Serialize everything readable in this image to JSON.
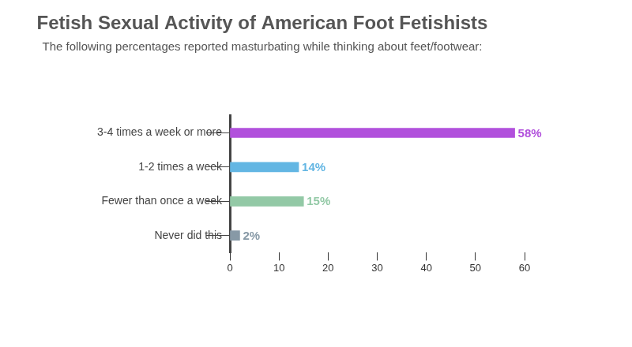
{
  "chart_data": {
    "type": "bar",
    "orientation": "horizontal",
    "title": "Fetish Sexual Activity of American Foot Fetishists",
    "subtitle": "The following percentages reported masturbating while thinking about feet/footwear:",
    "categories": [
      "3-4 times a week or more",
      "1-2 times a week",
      "Fewer than once a week",
      "Never did this"
    ],
    "values": [
      58,
      14,
      15,
      2
    ],
    "value_labels": [
      "58%",
      "14%",
      "15%",
      "2%"
    ],
    "colors": [
      "#b150dc",
      "#63b6e3",
      "#93c9a6",
      "#8799a6"
    ],
    "xlim": [
      0,
      60
    ],
    "xticks": [
      0,
      10,
      20,
      30,
      40,
      50,
      60
    ],
    "grid": false,
    "data_labels": true
  }
}
